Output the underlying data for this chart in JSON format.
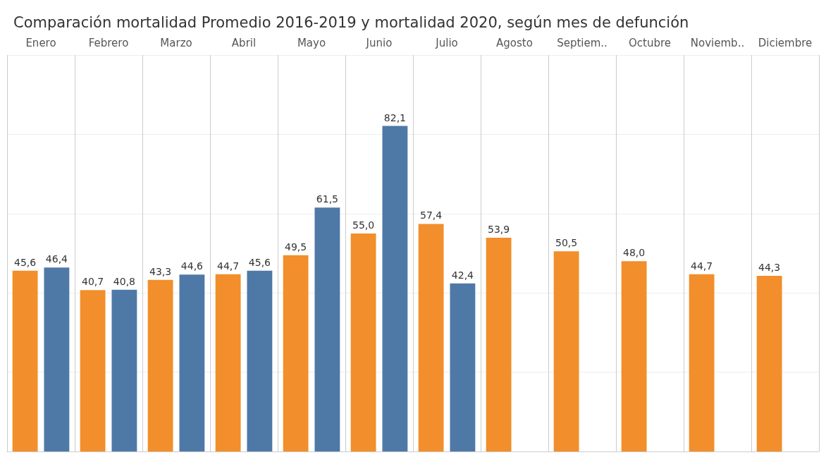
{
  "chart_data": {
    "type": "bar",
    "title": "Comparación mortalidad Promedio 2016-2019 y mortalidad 2020, según mes de defunción",
    "categories": [
      "Enero",
      "Febrero",
      "Marzo",
      "Abril",
      "Mayo",
      "Junio",
      "Julio",
      "Agosto",
      "Septiem..",
      "Octubre",
      "Noviemb..",
      "Diciembre"
    ],
    "series": [
      {
        "color": "#f28e2b",
        "values": [
          45.6,
          40.7,
          43.3,
          44.7,
          49.5,
          55.0,
          57.4,
          53.9,
          50.5,
          48.0,
          44.7,
          44.3
        ],
        "value_labels": [
          "45,6",
          "40,7",
          "43,3",
          "44,7",
          "49,5",
          "55,0",
          "57,4",
          "53,9",
          "50,5",
          "48,0",
          "44,7",
          "44,3"
        ]
      },
      {
        "color": "#4e79a7",
        "values": [
          46.4,
          40.8,
          44.6,
          45.6,
          61.5,
          82.1,
          42.4,
          null,
          null,
          null,
          null,
          null
        ],
        "value_labels": [
          "46,4",
          "40,8",
          "44,6",
          "45,6",
          "61,5",
          "82,1",
          "42,4",
          null,
          null,
          null,
          null,
          null
        ]
      }
    ],
    "grid": true,
    "tick_labels": "x"
  }
}
